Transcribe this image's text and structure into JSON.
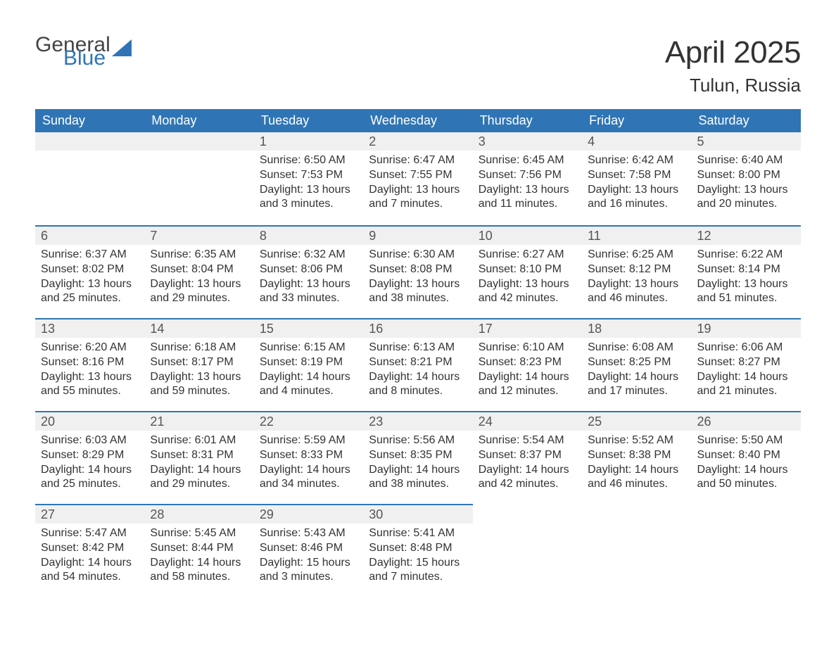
{
  "logo": {
    "word1": "General",
    "word2": "Blue",
    "icon_color": "#2f75b5",
    "text1_color": "#444444",
    "text2_color": "#2f75b5"
  },
  "title": "April 2025",
  "subtitle": "Tulun, Russia",
  "colors": {
    "header_bg": "#2f75b5",
    "header_text": "#ffffff",
    "daynum_bg": "#f0f0f0",
    "daynum_border": "#2f75b5",
    "body_text": "#333333",
    "page_bg": "#ffffff"
  },
  "fontsize": {
    "title": 44,
    "subtitle": 26,
    "dayheader": 18,
    "daynum": 18,
    "cell": 16
  },
  "days_of_week": [
    "Sunday",
    "Monday",
    "Tuesday",
    "Wednesday",
    "Thursday",
    "Friday",
    "Saturday"
  ],
  "weeks": [
    [
      null,
      null,
      {
        "n": "1",
        "sunrise": "6:50 AM",
        "sunset": "7:53 PM",
        "dl": "13 hours and 3 minutes."
      },
      {
        "n": "2",
        "sunrise": "6:47 AM",
        "sunset": "7:55 PM",
        "dl": "13 hours and 7 minutes."
      },
      {
        "n": "3",
        "sunrise": "6:45 AM",
        "sunset": "7:56 PM",
        "dl": "13 hours and 11 minutes."
      },
      {
        "n": "4",
        "sunrise": "6:42 AM",
        "sunset": "7:58 PM",
        "dl": "13 hours and 16 minutes."
      },
      {
        "n": "5",
        "sunrise": "6:40 AM",
        "sunset": "8:00 PM",
        "dl": "13 hours and 20 minutes."
      }
    ],
    [
      {
        "n": "6",
        "sunrise": "6:37 AM",
        "sunset": "8:02 PM",
        "dl": "13 hours and 25 minutes."
      },
      {
        "n": "7",
        "sunrise": "6:35 AM",
        "sunset": "8:04 PM",
        "dl": "13 hours and 29 minutes."
      },
      {
        "n": "8",
        "sunrise": "6:32 AM",
        "sunset": "8:06 PM",
        "dl": "13 hours and 33 minutes."
      },
      {
        "n": "9",
        "sunrise": "6:30 AM",
        "sunset": "8:08 PM",
        "dl": "13 hours and 38 minutes."
      },
      {
        "n": "10",
        "sunrise": "6:27 AM",
        "sunset": "8:10 PM",
        "dl": "13 hours and 42 minutes."
      },
      {
        "n": "11",
        "sunrise": "6:25 AM",
        "sunset": "8:12 PM",
        "dl": "13 hours and 46 minutes."
      },
      {
        "n": "12",
        "sunrise": "6:22 AM",
        "sunset": "8:14 PM",
        "dl": "13 hours and 51 minutes."
      }
    ],
    [
      {
        "n": "13",
        "sunrise": "6:20 AM",
        "sunset": "8:16 PM",
        "dl": "13 hours and 55 minutes."
      },
      {
        "n": "14",
        "sunrise": "6:18 AM",
        "sunset": "8:17 PM",
        "dl": "13 hours and 59 minutes."
      },
      {
        "n": "15",
        "sunrise": "6:15 AM",
        "sunset": "8:19 PM",
        "dl": "14 hours and 4 minutes."
      },
      {
        "n": "16",
        "sunrise": "6:13 AM",
        "sunset": "8:21 PM",
        "dl": "14 hours and 8 minutes."
      },
      {
        "n": "17",
        "sunrise": "6:10 AM",
        "sunset": "8:23 PM",
        "dl": "14 hours and 12 minutes."
      },
      {
        "n": "18",
        "sunrise": "6:08 AM",
        "sunset": "8:25 PM",
        "dl": "14 hours and 17 minutes."
      },
      {
        "n": "19",
        "sunrise": "6:06 AM",
        "sunset": "8:27 PM",
        "dl": "14 hours and 21 minutes."
      }
    ],
    [
      {
        "n": "20",
        "sunrise": "6:03 AM",
        "sunset": "8:29 PM",
        "dl": "14 hours and 25 minutes."
      },
      {
        "n": "21",
        "sunrise": "6:01 AM",
        "sunset": "8:31 PM",
        "dl": "14 hours and 29 minutes."
      },
      {
        "n": "22",
        "sunrise": "5:59 AM",
        "sunset": "8:33 PM",
        "dl": "14 hours and 34 minutes."
      },
      {
        "n": "23",
        "sunrise": "5:56 AM",
        "sunset": "8:35 PM",
        "dl": "14 hours and 38 minutes."
      },
      {
        "n": "24",
        "sunrise": "5:54 AM",
        "sunset": "8:37 PM",
        "dl": "14 hours and 42 minutes."
      },
      {
        "n": "25",
        "sunrise": "5:52 AM",
        "sunset": "8:38 PM",
        "dl": "14 hours and 46 minutes."
      },
      {
        "n": "26",
        "sunrise": "5:50 AM",
        "sunset": "8:40 PM",
        "dl": "14 hours and 50 minutes."
      }
    ],
    [
      {
        "n": "27",
        "sunrise": "5:47 AM",
        "sunset": "8:42 PM",
        "dl": "14 hours and 54 minutes."
      },
      {
        "n": "28",
        "sunrise": "5:45 AM",
        "sunset": "8:44 PM",
        "dl": "14 hours and 58 minutes."
      },
      {
        "n": "29",
        "sunrise": "5:43 AM",
        "sunset": "8:46 PM",
        "dl": "15 hours and 3 minutes."
      },
      {
        "n": "30",
        "sunrise": "5:41 AM",
        "sunset": "8:48 PM",
        "dl": "15 hours and 7 minutes."
      },
      null,
      null,
      null
    ]
  ],
  "labels": {
    "sunrise": "Sunrise: ",
    "sunset": "Sunset: ",
    "daylight": "Daylight: "
  }
}
